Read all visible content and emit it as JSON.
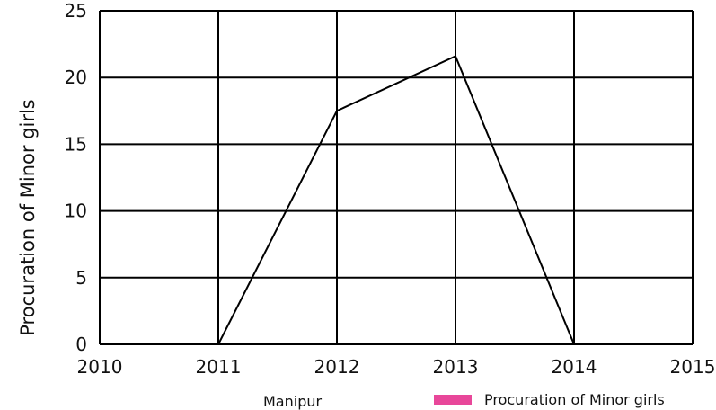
{
  "chart_data": {
    "type": "line",
    "x": [
      2011,
      2012,
      2013,
      2014
    ],
    "series": [
      {
        "name": "Procuration of Minor girls",
        "values": [
          0,
          17.5,
          21.6,
          0
        ]
      }
    ],
    "xlim": [
      2010,
      2015
    ],
    "ylim": [
      0,
      25
    ],
    "x_ticks": [
      "2010",
      "2011",
      "2012",
      "2013",
      "2014",
      "2015"
    ],
    "y_ticks": [
      "0",
      "5",
      "10",
      "15",
      "20",
      "25"
    ],
    "ylabel": "Procuration of Minor girls",
    "xlabel": "Manipur",
    "grid": true,
    "legend": {
      "position": "bottom-right",
      "label": "Procuration of Minor girls",
      "color": "#e8479a"
    },
    "line_color": "#000000"
  }
}
